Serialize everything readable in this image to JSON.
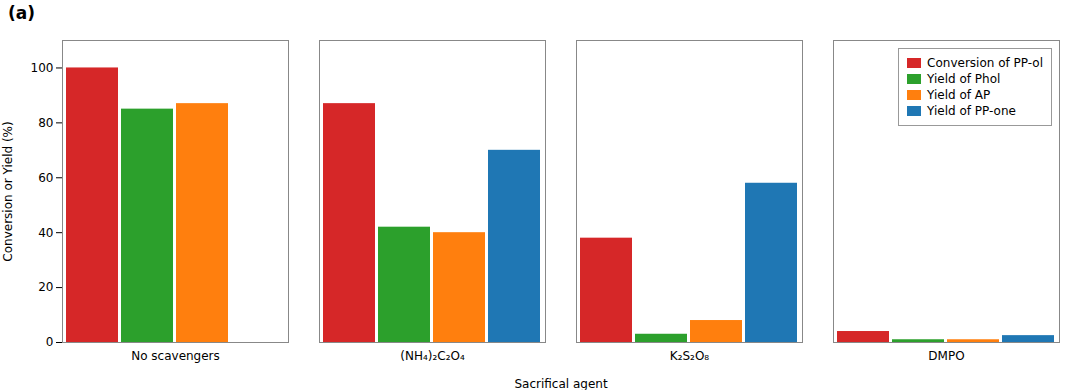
{
  "chart_data": {
    "type": "bar",
    "title": "(a)",
    "xlabel": "Sacrifical agent",
    "ylabel": "Conversion or Yield (%)",
    "categories": [
      "No scavengers",
      "(NH₄)₂C₂O₄",
      "K₂S₂O₈",
      "DMPO"
    ],
    "series": [
      {
        "name": "Conversion of PP-ol",
        "color": "#d62728",
        "values": [
          100,
          87,
          38,
          4
        ]
      },
      {
        "name": "Yield of Phol",
        "color": "#2ca02c",
        "values": [
          85,
          42,
          3,
          1
        ]
      },
      {
        "name": "Yield of AP",
        "color": "#ff7f0e",
        "values": [
          87,
          40,
          8,
          1
        ]
      },
      {
        "name": "Yield of PP-one",
        "color": "#1f77b4",
        "values": [
          0,
          70,
          58,
          2.5
        ]
      }
    ],
    "ylim": [
      0,
      110
    ],
    "yticks": [
      0,
      20,
      40,
      60,
      80,
      100
    ],
    "grid": false,
    "legend": "upper right"
  }
}
